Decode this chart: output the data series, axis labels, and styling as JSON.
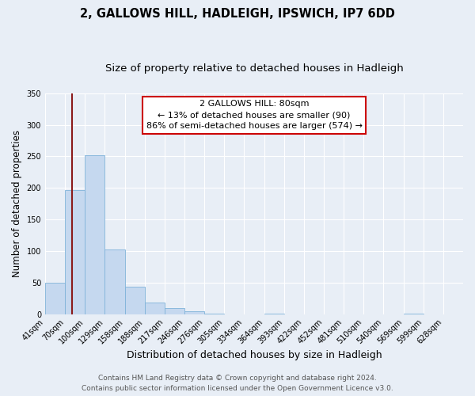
{
  "title": "2, GALLOWS HILL, HADLEIGH, IPSWICH, IP7 6DD",
  "subtitle": "Size of property relative to detached houses in Hadleigh",
  "xlabel": "Distribution of detached houses by size in Hadleigh",
  "ylabel": "Number of detached properties",
  "bar_heights": [
    50,
    197,
    252,
    102,
    44,
    19,
    10,
    4,
    1,
    0,
    0,
    1,
    0,
    0,
    0,
    0,
    0,
    0,
    1,
    0,
    0
  ],
  "bin_labels": [
    "41sqm",
    "70sqm",
    "100sqm",
    "129sqm",
    "158sqm",
    "188sqm",
    "217sqm",
    "246sqm",
    "276sqm",
    "305sqm",
    "334sqm",
    "364sqm",
    "393sqm",
    "422sqm",
    "452sqm",
    "481sqm",
    "510sqm",
    "540sqm",
    "569sqm",
    "599sqm",
    "628sqm"
  ],
  "bar_color": "#c5d8ef",
  "bar_edge_color": "#7fb3d9",
  "marker_bar_index": 1,
  "marker_line_color": "#8b1a1a",
  "ylim": [
    0,
    350
  ],
  "yticks": [
    0,
    50,
    100,
    150,
    200,
    250,
    300,
    350
  ],
  "annotation_line1": "2 GALLOWS HILL: 80sqm",
  "annotation_line2": "← 13% of detached houses are smaller (90)",
  "annotation_line3": "86% of semi-detached houses are larger (574) →",
  "annotation_box_color": "#ffffff",
  "annotation_box_edge_color": "#cc0000",
  "footer_line1": "Contains HM Land Registry data © Crown copyright and database right 2024.",
  "footer_line2": "Contains public sector information licensed under the Open Government Licence v3.0.",
  "background_color": "#e8eef6",
  "plot_bg_color": "#e8eef6",
  "grid_color": "#ffffff",
  "title_fontsize": 10.5,
  "subtitle_fontsize": 9.5,
  "xlabel_fontsize": 9,
  "ylabel_fontsize": 8.5,
  "tick_fontsize": 7,
  "annotation_fontsize": 8,
  "footer_fontsize": 6.5
}
